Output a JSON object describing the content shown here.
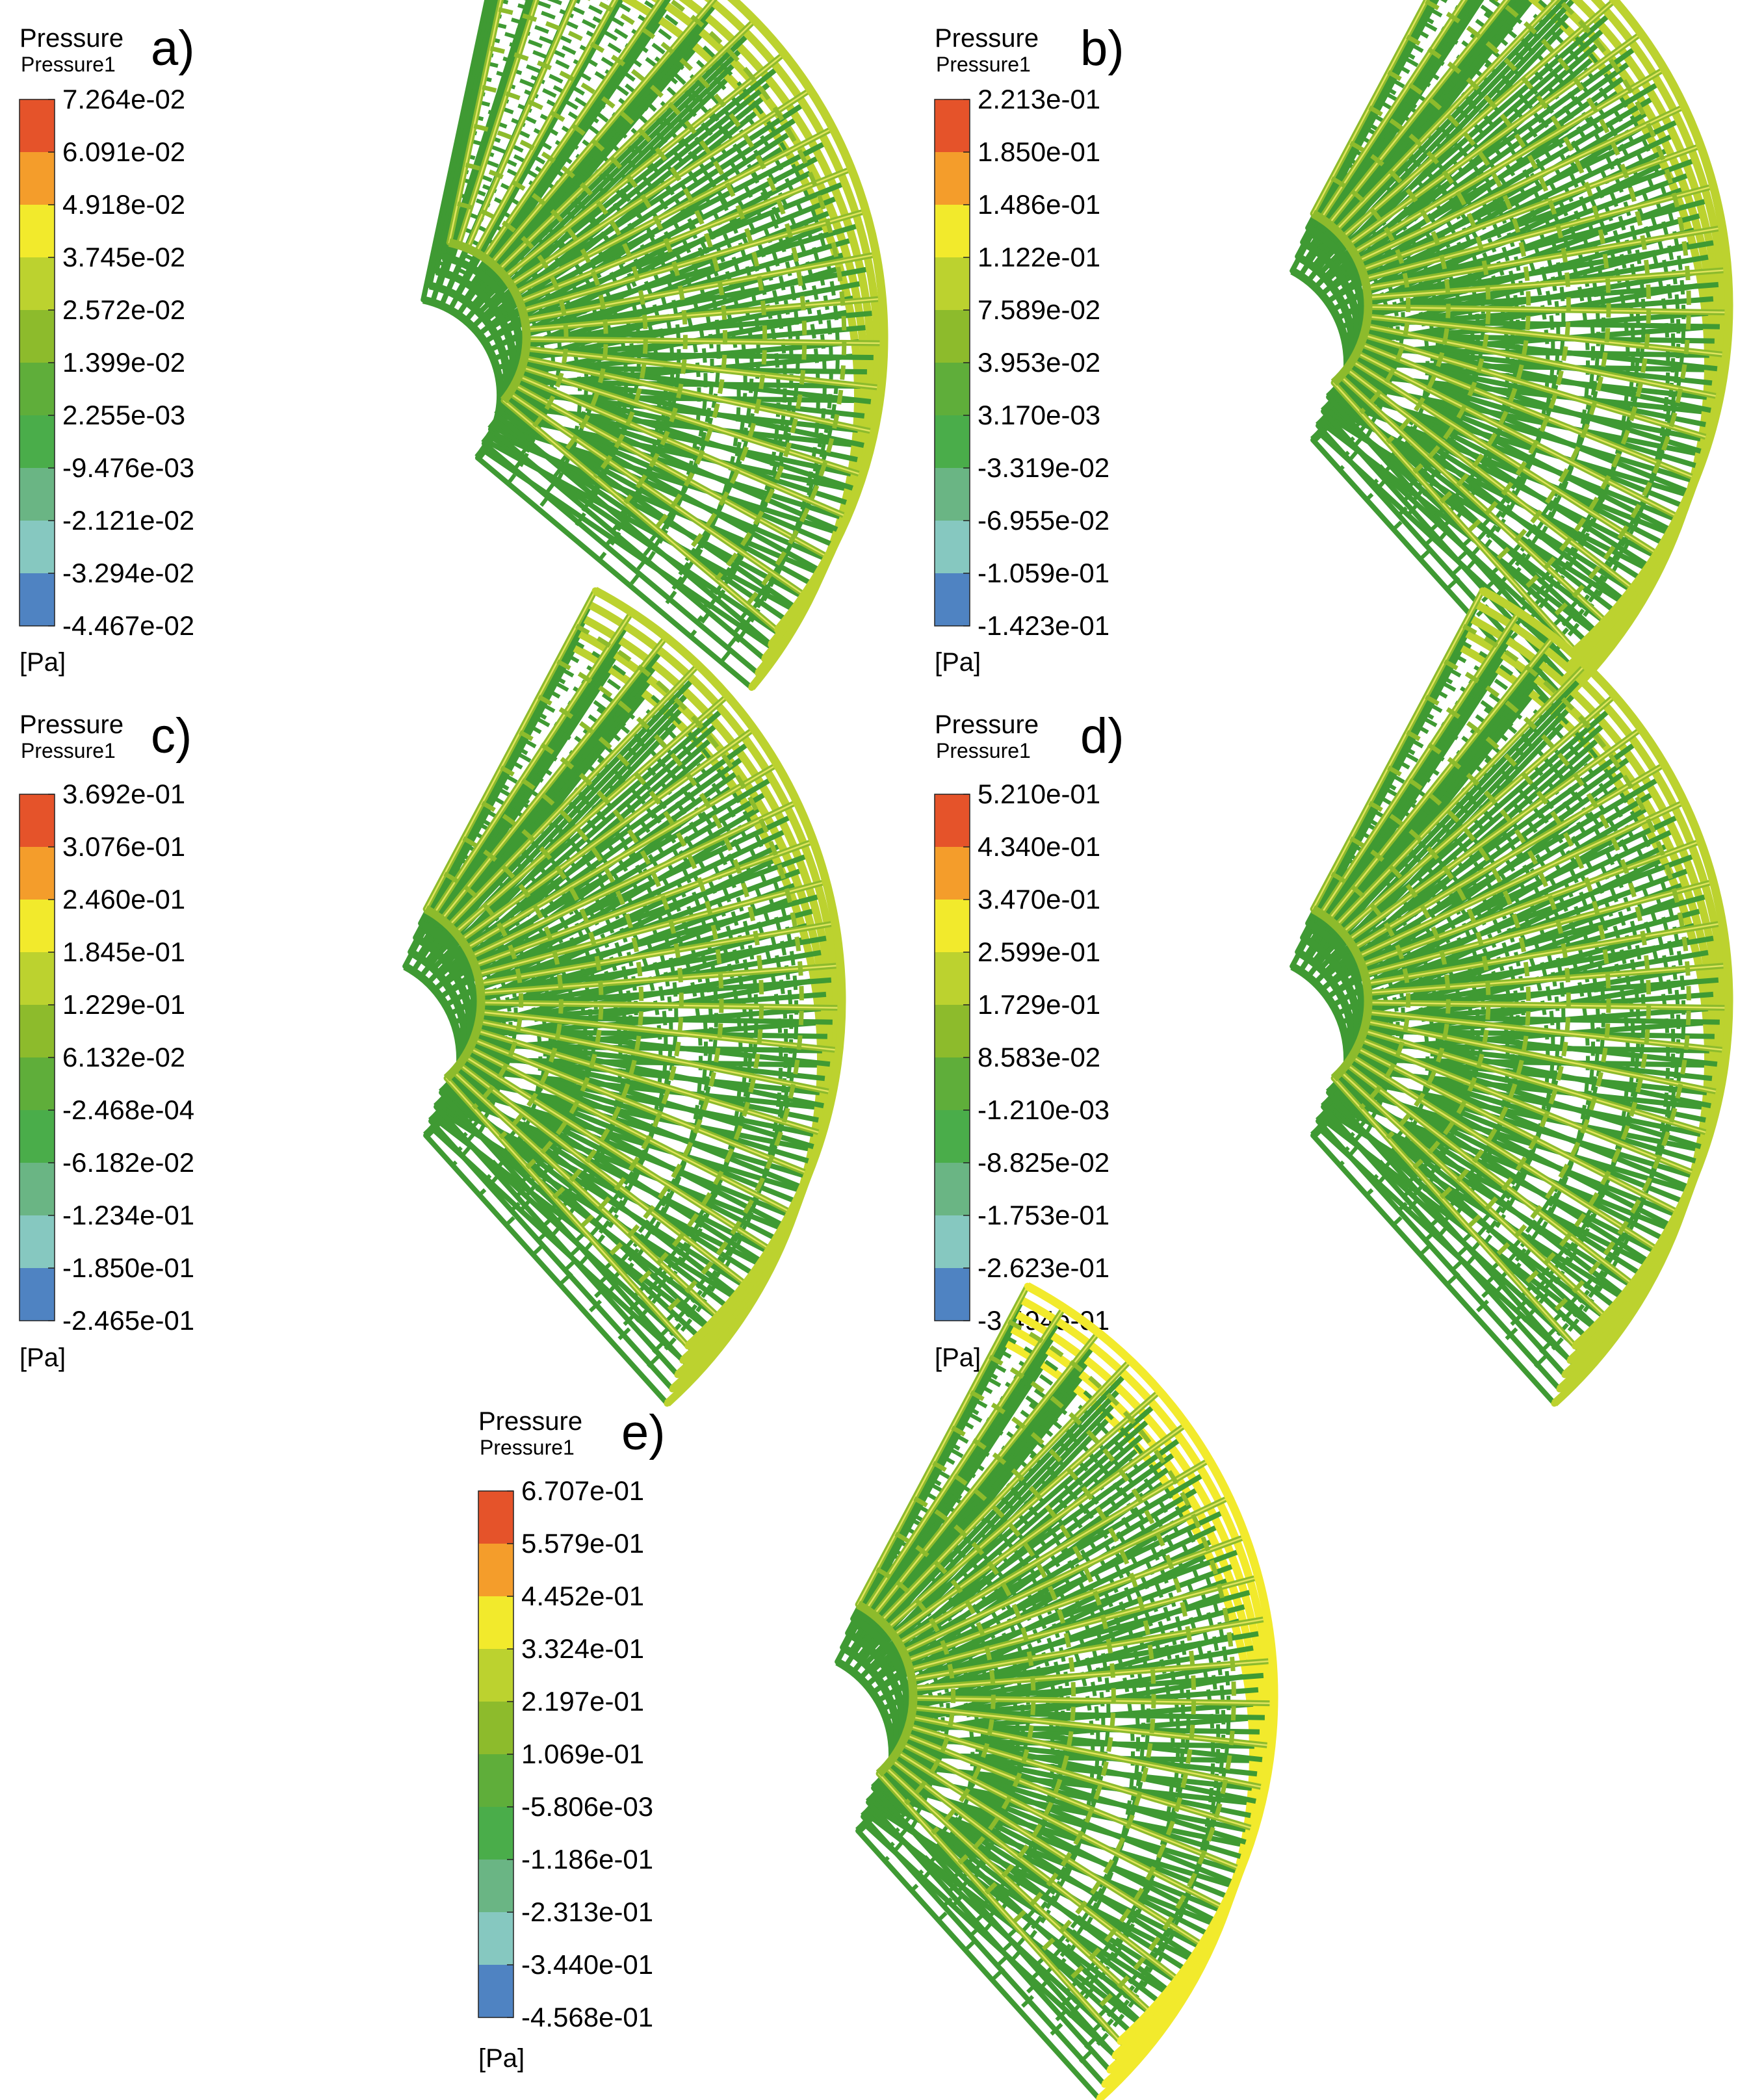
{
  "figure": {
    "units": "[Pa]",
    "legend_title": "Pressure",
    "legend_subtitle": "Pressure1",
    "colormap": [
      "#46237a",
      "#4f83c2",
      "#86c8c0",
      "#6ab584",
      "#4aad4a",
      "#5fae3a",
      "#8dbb2c",
      "#bcd22f",
      "#f2ea2c",
      "#f49d2b",
      "#e5532a"
    ]
  },
  "chart_data": [
    {
      "type": "heatmap",
      "panel": "a)",
      "title": "Pressure",
      "subtitle": "Pressure1",
      "unit": "[Pa]",
      "ticks": [
        "7.264e-02",
        "6.091e-02",
        "4.918e-02",
        "3.745e-02",
        "2.572e-02",
        "1.399e-02",
        "2.255e-03",
        "-9.476e-03",
        "-2.121e-02",
        "-3.294e-02",
        "-4.467e-02"
      ],
      "range": [
        -0.04467,
        0.07264
      ],
      "field_level": 0.58,
      "edge_level": 0.66
    },
    {
      "type": "heatmap",
      "panel": "b)",
      "title": "Pressure",
      "subtitle": "Pressure1",
      "unit": "[Pa]",
      "ticks": [
        "2.213e-01",
        "1.850e-01",
        "1.486e-01",
        "1.122e-01",
        "7.589e-02",
        "3.953e-02",
        "3.170e-03",
        "-3.319e-02",
        "-6.955e-02",
        "-1.059e-01",
        "-1.423e-01"
      ],
      "range": [
        -0.1423,
        0.2213
      ],
      "field_level": 0.56,
      "edge_level": 0.68
    },
    {
      "type": "heatmap",
      "panel": "c)",
      "title": "Pressure",
      "subtitle": "Pressure1",
      "unit": "[Pa]",
      "ticks": [
        "3.692e-01",
        "3.076e-01",
        "2.460e-01",
        "1.845e-01",
        "1.229e-01",
        "6.132e-02",
        "-2.468e-04",
        "-6.182e-02",
        "-1.234e-01",
        "-1.850e-01",
        "-2.465e-01"
      ],
      "range": [
        -0.2465,
        0.3692
      ],
      "field_level": 0.58,
      "edge_level": 0.72
    },
    {
      "type": "heatmap",
      "panel": "d)",
      "title": "Pressure",
      "subtitle": "Pressure1",
      "unit": "[Pa]",
      "ticks": [
        "5.210e-01",
        "4.340e-01",
        "3.470e-01",
        "2.599e-01",
        "1.729e-01",
        "8.583e-02",
        "-1.210e-03",
        "-8.825e-02",
        "-1.753e-01",
        "-2.623e-01",
        "-3.494e-01"
      ],
      "range": [
        -0.3494,
        0.521
      ],
      "field_level": 0.6,
      "edge_level": 0.74
    },
    {
      "type": "heatmap",
      "panel": "e)",
      "title": "Pressure",
      "subtitle": "Pressure1",
      "unit": "[Pa]",
      "ticks": [
        "6.707e-01",
        "5.579e-01",
        "4.452e-01",
        "3.324e-01",
        "2.197e-01",
        "1.069e-01",
        "-5.806e-03",
        "-1.186e-01",
        "-2.313e-01",
        "-3.440e-01",
        "-4.568e-01"
      ],
      "range": [
        -0.4568,
        0.6707
      ],
      "field_level": 0.62,
      "edge_level": 0.78
    }
  ]
}
